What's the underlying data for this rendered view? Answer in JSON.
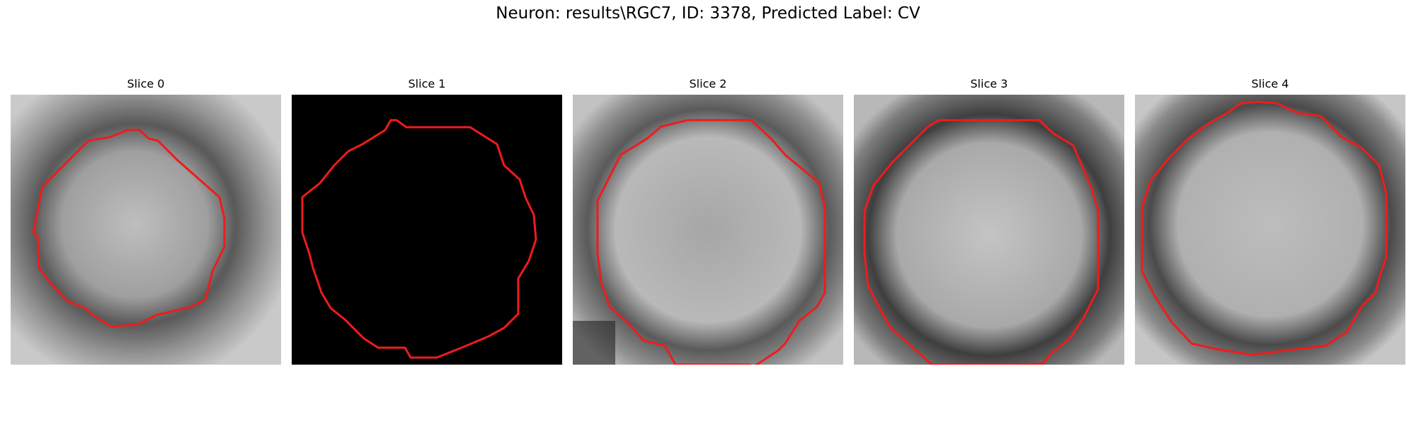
{
  "figure": {
    "title": "Neuron: results\\RGC7, ID: 3378, Predicted Label: CV"
  },
  "panels": [
    {
      "title": "Slice 0",
      "image": "grayscale-microscopy-patch",
      "contour_color": "#ee1c1c"
    },
    {
      "title": "Slice 1",
      "image": "black-patch",
      "contour_color": "#ee1c1c"
    },
    {
      "title": "Slice 2",
      "image": "grayscale-microscopy-patch",
      "contour_color": "#ee1c1c"
    },
    {
      "title": "Slice 3",
      "image": "grayscale-microscopy-patch",
      "contour_color": "#ee1c1c"
    },
    {
      "title": "Slice 4",
      "image": "grayscale-microscopy-patch",
      "contour_color": "#ee1c1c"
    }
  ]
}
